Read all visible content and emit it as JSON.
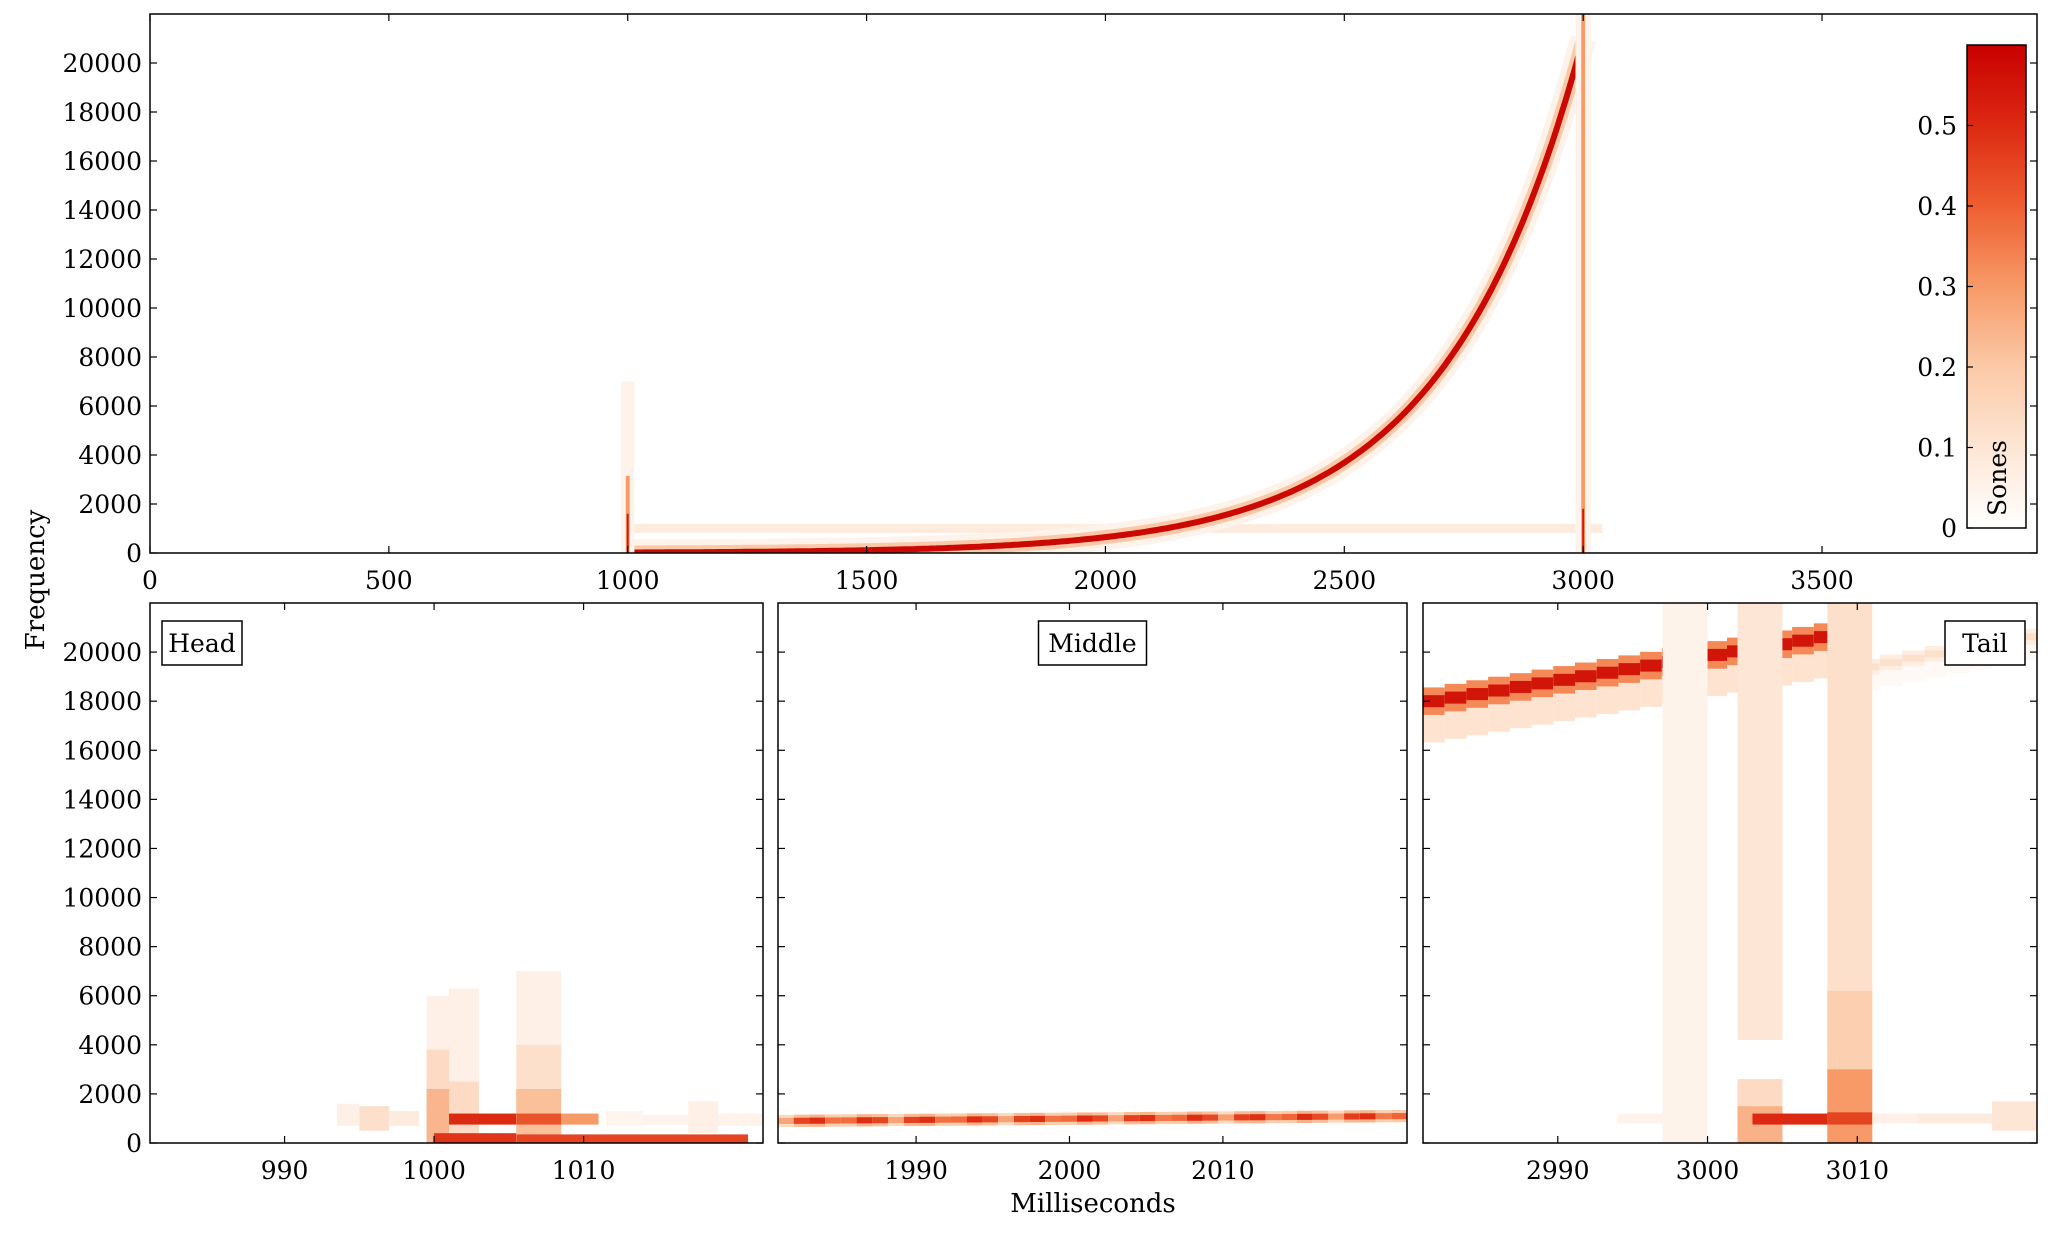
{
  "figure": {
    "ylabel": "Frequency",
    "xlabel": "Milliseconds"
  },
  "colors": {
    "axis": "#000000",
    "background": "#ffffff",
    "cmap": [
      "#ffffff",
      "#fde6d5",
      "#fbc9a7",
      "#f79a68",
      "#ee5e30",
      "#dc2a12",
      "#c80000"
    ]
  },
  "chart_data": [
    {
      "id": "full",
      "type": "heatmap",
      "title": "",
      "xlabel": "",
      "ylabel": "Frequency",
      "xlim": [
        0,
        3950
      ],
      "ylim": [
        0,
        22000
      ],
      "xticks": [
        0,
        500,
        1000,
        1500,
        2000,
        2500,
        3000,
        3500
      ],
      "yticks": [
        0,
        2000,
        4000,
        6000,
        8000,
        10000,
        12000,
        14000,
        16000,
        18000,
        20000
      ],
      "features": {
        "chirp": {
          "t_start": 1000,
          "t_end": 3000,
          "f_start": 20,
          "f_end": 21000,
          "peak_sones": 0.58
        },
        "tone": {
          "t_start": 1000,
          "t_end": 3040,
          "frequency": 1000,
          "sones": 0.08
        },
        "onset_click": {
          "t": 1000,
          "f_max": 7000,
          "sones": 0.55
        },
        "offset_click": {
          "t": 3000,
          "f_max": 22000,
          "sones": 0.55
        }
      }
    },
    {
      "id": "head",
      "type": "heatmap",
      "title": "Head",
      "xlim": [
        981,
        1022
      ],
      "ylim": [
        0,
        22000
      ],
      "xticks": [
        990,
        1000,
        1010
      ],
      "yticks": [
        0,
        2000,
        4000,
        6000,
        8000,
        10000,
        12000,
        14000,
        16000,
        18000,
        20000
      ],
      "cells": [
        {
          "t": [
            993.5,
            995
          ],
          "f": [
            700,
            1600
          ],
          "v": 0.06
        },
        {
          "t": [
            995,
            997
          ],
          "f": [
            500,
            1500
          ],
          "v": 0.12
        },
        {
          "t": [
            997,
            999
          ],
          "f": [
            700,
            1300
          ],
          "v": 0.08
        },
        {
          "t": [
            999.5,
            1001
          ],
          "f": [
            0,
            6000
          ],
          "v": 0.06
        },
        {
          "t": [
            999.5,
            1001
          ],
          "f": [
            0,
            3800
          ],
          "v": 0.14
        },
        {
          "t": [
            999.5,
            1001
          ],
          "f": [
            0,
            2200
          ],
          "v": 0.24
        },
        {
          "t": [
            1001,
            1003
          ],
          "f": [
            0,
            6300
          ],
          "v": 0.06
        },
        {
          "t": [
            1001,
            1003
          ],
          "f": [
            0,
            2500
          ],
          "v": 0.14
        },
        {
          "t": [
            1001,
            1005.5
          ],
          "f": [
            750,
            1200
          ],
          "v": 0.5
        },
        {
          "t": [
            1000,
            1005.5
          ],
          "f": [
            0,
            400
          ],
          "v": 0.48
        },
        {
          "t": [
            1005.5,
            1008.5
          ],
          "f": [
            0,
            7000
          ],
          "v": 0.06
        },
        {
          "t": [
            1005.5,
            1008.5
          ],
          "f": [
            0,
            4000
          ],
          "v": 0.12
        },
        {
          "t": [
            1005.5,
            1008.5
          ],
          "f": [
            0,
            2200
          ],
          "v": 0.22
        },
        {
          "t": [
            1005.5,
            1008.5
          ],
          "f": [
            750,
            1200
          ],
          "v": 0.42
        },
        {
          "t": [
            1008.5,
            1011
          ],
          "f": [
            750,
            1200
          ],
          "v": 0.3
        },
        {
          "t": [
            1005.5,
            1021
          ],
          "f": [
            0,
            350
          ],
          "v": 0.45
        },
        {
          "t": [
            1011.5,
            1014
          ],
          "f": [
            700,
            1300
          ],
          "v": 0.04
        },
        {
          "t": [
            1014,
            1017
          ],
          "f": [
            750,
            1150
          ],
          "v": 0.05
        },
        {
          "t": [
            1017,
            1019
          ],
          "f": [
            400,
            1700
          ],
          "v": 0.06
        },
        {
          "t": [
            1019,
            1022
          ],
          "f": [
            700,
            1200
          ],
          "v": 0.05
        }
      ]
    },
    {
      "id": "middle",
      "type": "heatmap",
      "title": "Middle",
      "xlim": [
        1981,
        2022
      ],
      "ylim": [
        0,
        22000
      ],
      "xticks": [
        1990,
        2000,
        2010
      ],
      "yticks": [
        0,
        2000,
        4000,
        6000,
        8000,
        10000,
        12000,
        14000,
        16000,
        18000,
        20000
      ],
      "band": {
        "f_start": 900,
        "f_end": 1100,
        "width": 500,
        "sones": 0.5
      },
      "cells": []
    },
    {
      "id": "tail",
      "type": "heatmap",
      "title": "Tail",
      "xlim": [
        2981,
        3022
      ],
      "ylim": [
        0,
        22000
      ],
      "xticks": [
        2990,
        3000,
        3010
      ],
      "yticks": [
        0,
        2000,
        4000,
        6000,
        8000,
        10000,
        12000,
        14000,
        16000,
        18000,
        20000
      ],
      "chirp": {
        "t_start": 2981,
        "t_end": 3010,
        "f_start": 18000,
        "f_end": 20900,
        "sones": 0.55
      },
      "chirp_tail": {
        "t_start": 3010,
        "t_end": 3022,
        "f_start": 19400,
        "f_end": 20800,
        "sones": 0.12
      },
      "cells": [
        {
          "t": [
            2997,
            3000
          ],
          "f": [
            0,
            22000
          ],
          "v": 0.05
        },
        {
          "t": [
            3002,
            3005
          ],
          "f": [
            4200,
            22000
          ],
          "v": 0.1
        },
        {
          "t": [
            3002,
            3005
          ],
          "f": [
            0,
            2600
          ],
          "v": 0.14
        },
        {
          "t": [
            3002,
            3005
          ],
          "f": [
            0,
            1500
          ],
          "v": 0.25
        },
        {
          "t": [
            3008,
            3011
          ],
          "f": [
            0,
            22000
          ],
          "v": 0.12
        },
        {
          "t": [
            3008,
            3011
          ],
          "f": [
            0,
            6200
          ],
          "v": 0.18
        },
        {
          "t": [
            3008,
            3011
          ],
          "f": [
            0,
            3000
          ],
          "v": 0.3
        },
        {
          "t": [
            3008,
            3011
          ],
          "f": [
            750,
            1250
          ],
          "v": 0.45
        },
        {
          "t": [
            3003,
            3008
          ],
          "f": [
            750,
            1200
          ],
          "v": 0.5
        },
        {
          "t": [
            2994,
            2997
          ],
          "f": [
            800,
            1200
          ],
          "v": 0.05
        },
        {
          "t": [
            3011,
            3014
          ],
          "f": [
            800,
            1200
          ],
          "v": 0.06
        },
        {
          "t": [
            3014,
            3019
          ],
          "f": [
            800,
            1200
          ],
          "v": 0.08
        },
        {
          "t": [
            3019,
            3022
          ],
          "f": [
            500,
            1700
          ],
          "v": 0.1
        }
      ]
    }
  ],
  "colorbar": {
    "label": "Sones",
    "range": [
      0,
      0.6
    ],
    "ticks": [
      "0",
      "0.1",
      "0.2",
      "0.3",
      "0.4",
      "0.5"
    ]
  }
}
